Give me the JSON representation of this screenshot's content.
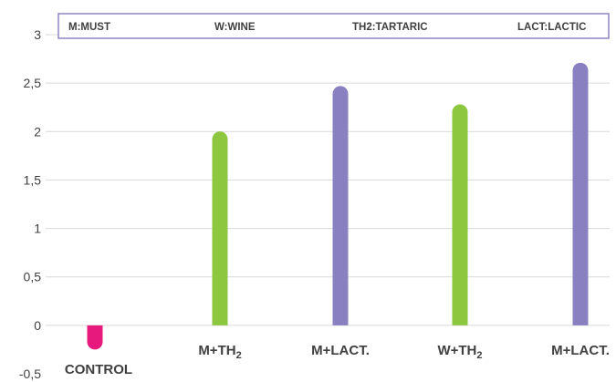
{
  "chart_data": {
    "type": "bar",
    "categories": [
      "CONTROL",
      "M+TH2",
      "M+LACT.",
      "W+TH2",
      "M+LACT."
    ],
    "category_display": [
      {
        "main": "CONTROL",
        "sub": ""
      },
      {
        "main": "M+TH",
        "sub": "2"
      },
      {
        "main": "M+LACT.",
        "sub": ""
      },
      {
        "main": "W+TH",
        "sub": "2"
      },
      {
        "main": "M+LACT.",
        "sub": ""
      }
    ],
    "values": [
      -0.25,
      2.0,
      2.47,
      2.28,
      2.71
    ],
    "colors": [
      "#e8197c",
      "#8dc63f",
      "#8880c0",
      "#8dc63f",
      "#8880c0"
    ],
    "ylim": [
      -0.5,
      3
    ],
    "yticks": [
      -0.5,
      0,
      0.5,
      1,
      1.5,
      2,
      2.5,
      3
    ],
    "ytick_labels": [
      "-0,5",
      "0",
      "0,5",
      "1",
      "1,5",
      "2",
      "2,5",
      "3"
    ],
    "grid": true,
    "title": "",
    "xlabel": "",
    "ylabel": "",
    "legend": [
      "M:MUST",
      "W:WINE",
      "TH2:TARTARIC",
      "LACT:LACTIC"
    ],
    "legend_position": "top"
  }
}
